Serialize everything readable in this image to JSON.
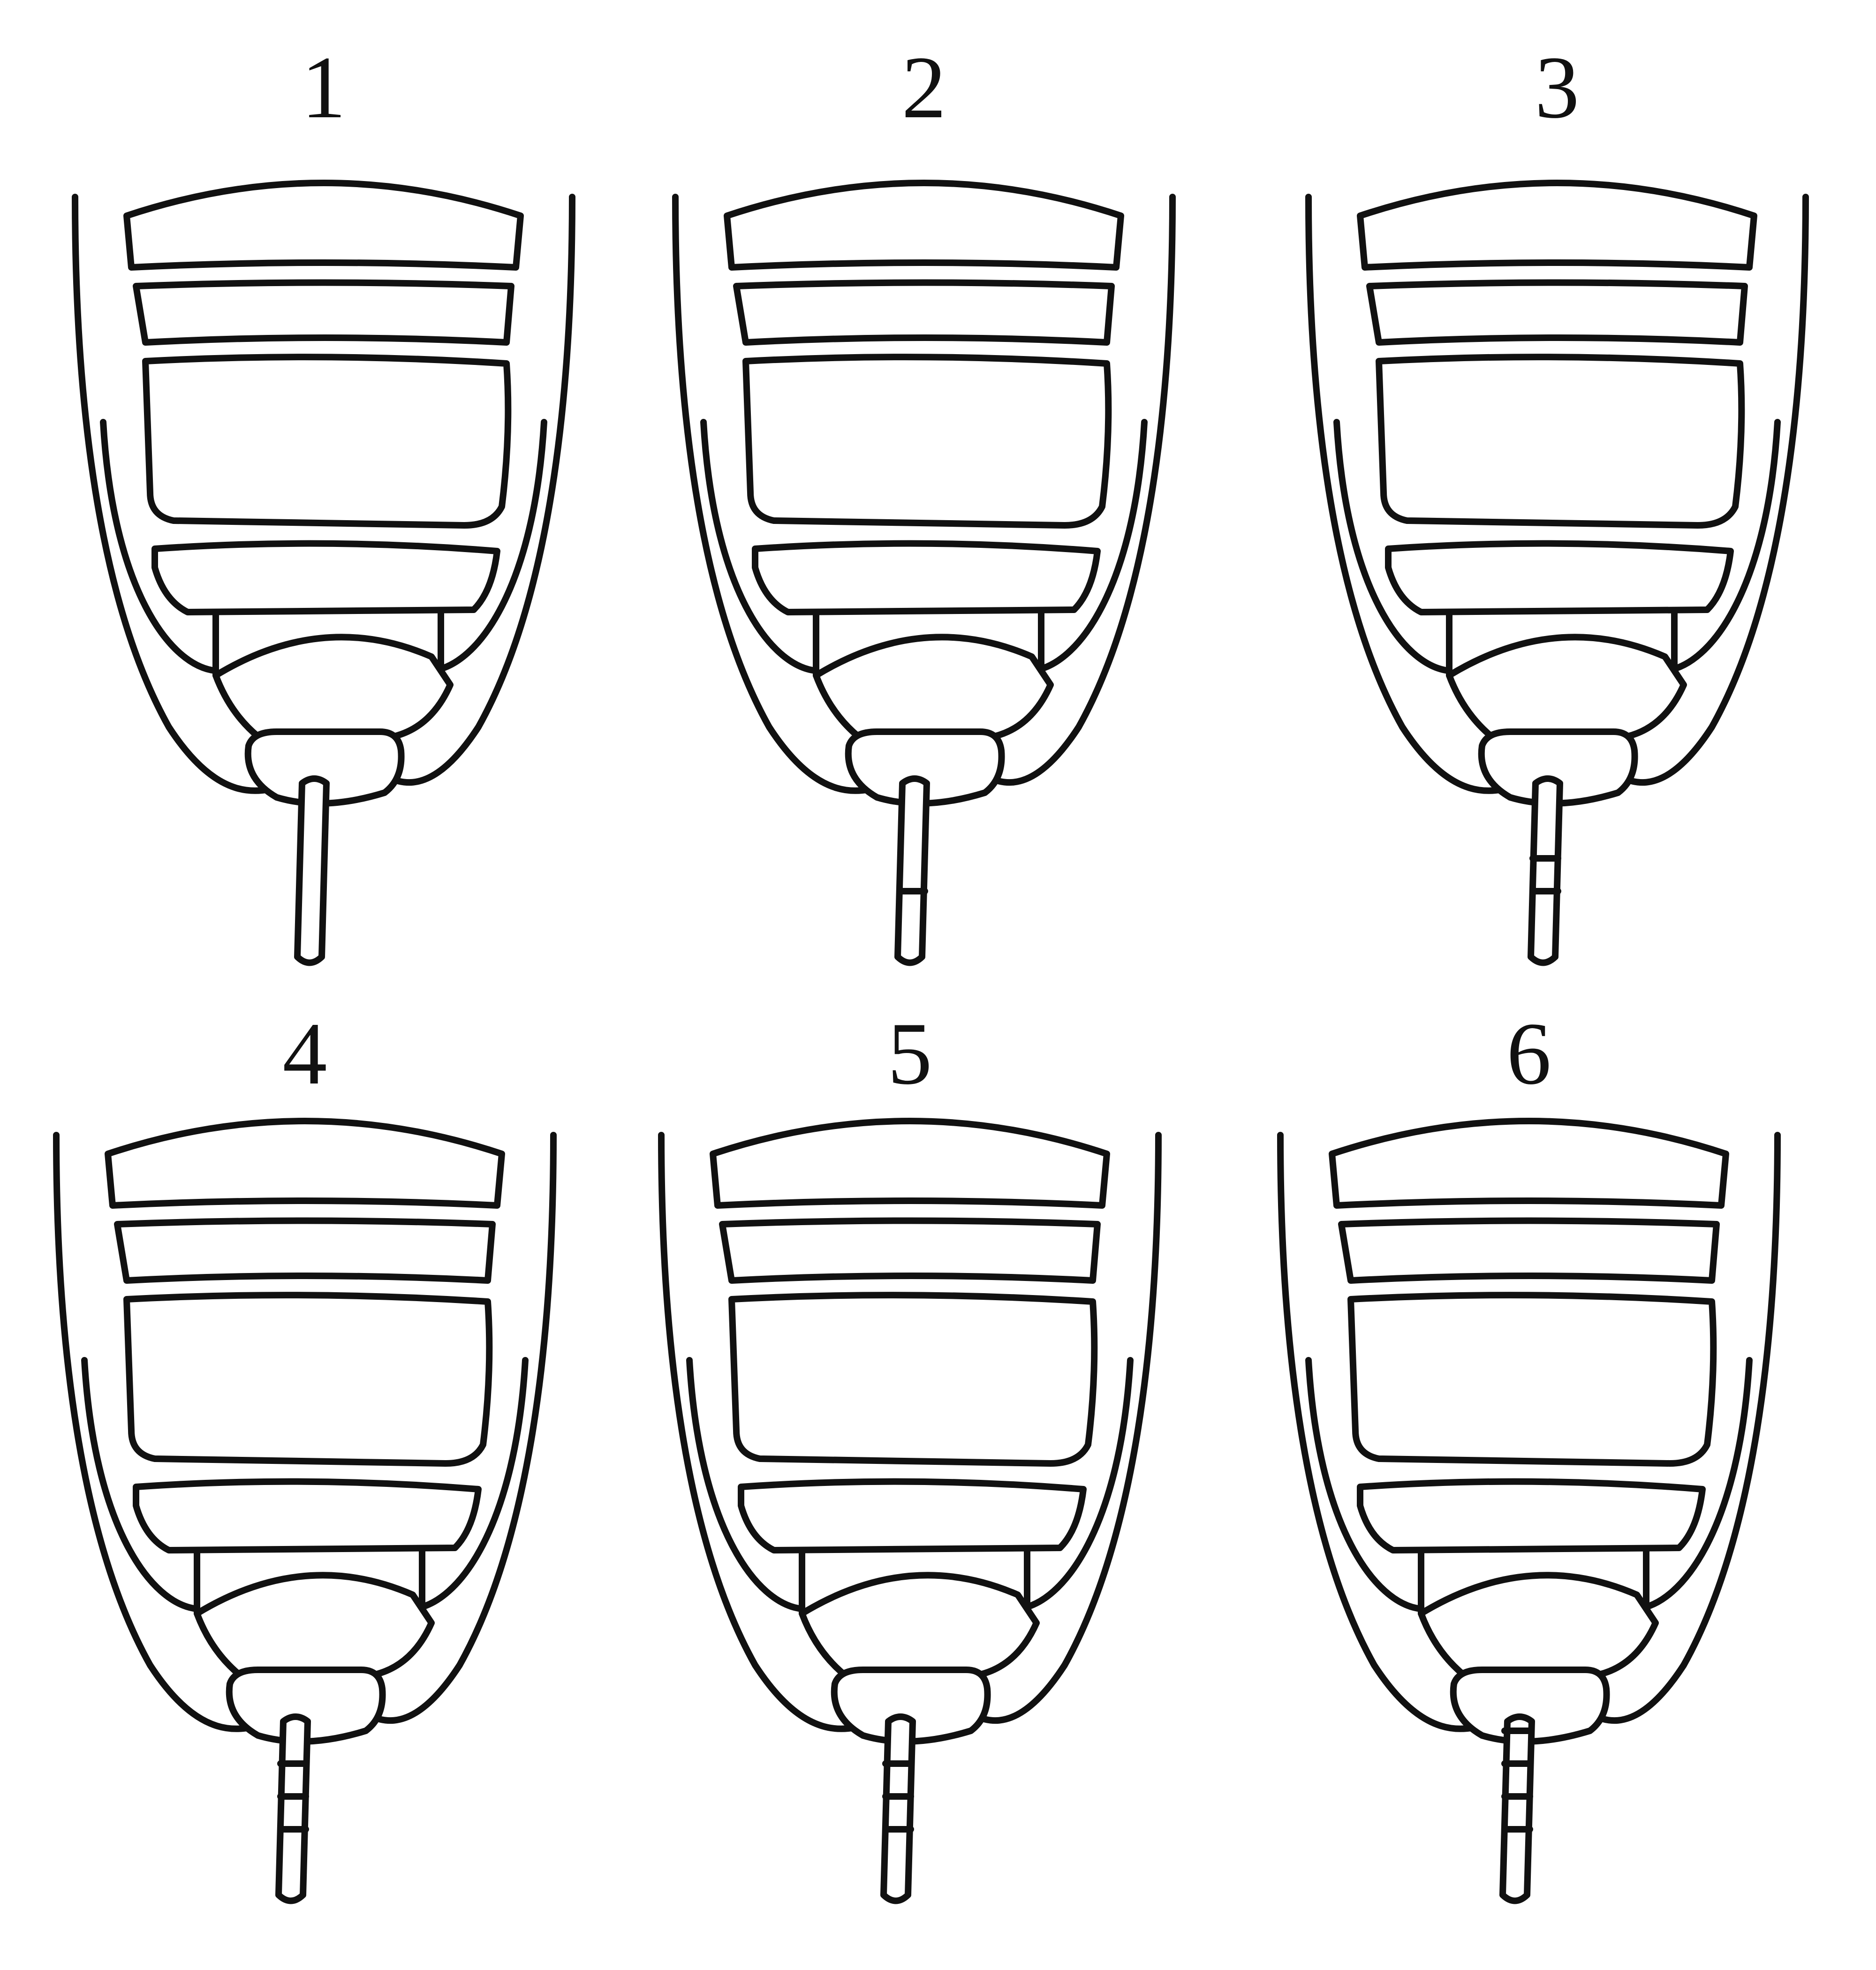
{
  "figure": {
    "panels": [
      {
        "label": "1",
        "annulations": 0
      },
      {
        "label": "2",
        "annulations": 1
      },
      {
        "label": "3",
        "annulations": 2
      },
      {
        "label": "4",
        "annulations": 3
      },
      {
        "label": "5",
        "annulations": 3
      },
      {
        "label": "6",
        "annulations": 4
      }
    ]
  }
}
